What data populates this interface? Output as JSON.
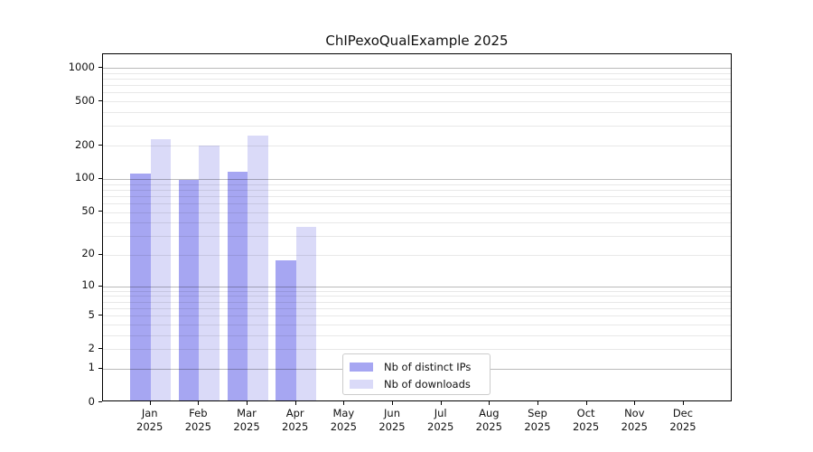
{
  "chart_data": {
    "type": "bar",
    "title": "ChIPexoQualExample 2025",
    "year": "2025",
    "months": [
      "Jan",
      "Feb",
      "Mar",
      "Apr",
      "May",
      "Jun",
      "Jul",
      "Aug",
      "Sep",
      "Oct",
      "Nov",
      "Dec"
    ],
    "categories": [
      "Jan 2025",
      "Feb 2025",
      "Mar 2025",
      "Apr 2025",
      "May 2025",
      "Jun 2025",
      "Jul 2025",
      "Aug 2025",
      "Sep 2025",
      "Oct 2025",
      "Nov 2025",
      "Dec 2025"
    ],
    "series": [
      {
        "name": "Nb of distinct IPs",
        "color": "#a6a6f2",
        "values": [
          108,
          94,
          112,
          17,
          0,
          0,
          0,
          0,
          0,
          0,
          0,
          0
        ]
      },
      {
        "name": "Nb of downloads",
        "color": "#dadaf8",
        "values": [
          220,
          194,
          235,
          35,
          0,
          0,
          0,
          0,
          0,
          0,
          0,
          0
        ]
      }
    ],
    "y_scale": "log1p",
    "ylim": [
      0,
      1325
    ],
    "y_ticks": [
      0,
      1,
      2,
      5,
      10,
      20,
      50,
      100,
      200,
      500,
      1000
    ],
    "major_gridlines": [
      1,
      10,
      100,
      1000
    ],
    "minor_gridlines": [
      2,
      3,
      4,
      5,
      6,
      7,
      8,
      9,
      20,
      30,
      40,
      50,
      60,
      70,
      80,
      90,
      200,
      300,
      400,
      500,
      600,
      700,
      800,
      900
    ],
    "grid": true,
    "legend_position": "bottom-center",
    "xlabel": "",
    "ylabel": ""
  },
  "colors": {
    "background": "#ffffff",
    "axis": "#000000",
    "major_grid": "#b9b9b9",
    "minor_grid": "#e8e8e8",
    "text": "#111111",
    "legend_border": "#cccccc"
  }
}
